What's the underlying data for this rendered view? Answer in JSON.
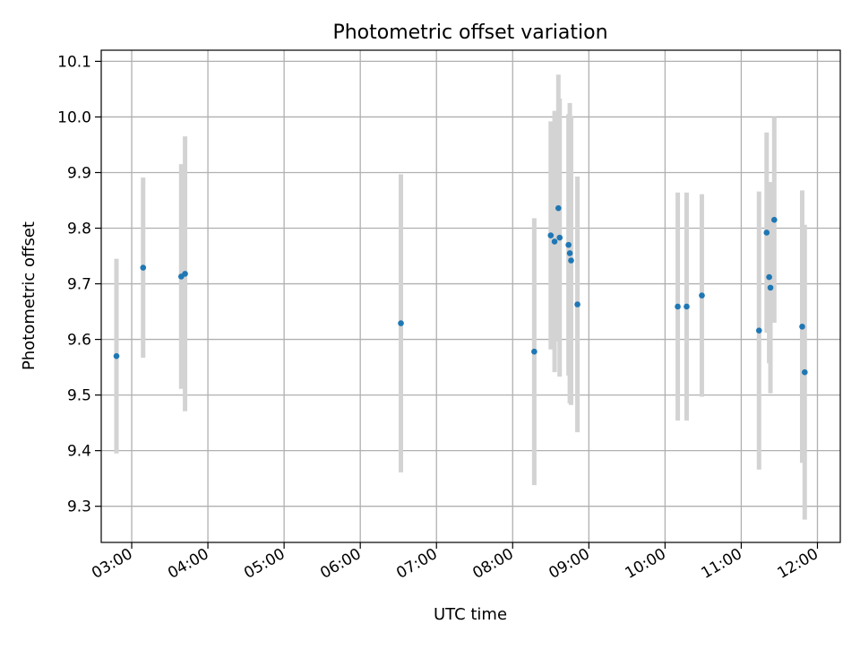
{
  "chart_data": {
    "type": "scatter",
    "title": "Photometric offset variation",
    "xlabel": "UTC time",
    "ylabel": "Photometric offset",
    "xlim": [
      "02:36",
      "12:18"
    ],
    "ylim": [
      9.235,
      10.12
    ],
    "x_ticks": [
      "03:00",
      "04:00",
      "05:00",
      "06:00",
      "07:00",
      "08:00",
      "09:00",
      "10:00",
      "11:00",
      "12:00"
    ],
    "y_ticks": [
      "9.3",
      "9.4",
      "9.5",
      "9.6",
      "9.7",
      "9.8",
      "9.9",
      "10.0",
      "10.1"
    ],
    "grid": true,
    "point_color": "#1f77b4",
    "errorbar_color": "#d3d3d3",
    "points": [
      {
        "x": "02:48",
        "y": 9.57,
        "err": 0.175
      },
      {
        "x": "03:09",
        "y": 9.729,
        "err": 0.162
      },
      {
        "x": "03:39",
        "y": 9.713,
        "err": 0.202
      },
      {
        "x": "03:42",
        "y": 9.718,
        "err": 0.247
      },
      {
        "x": "06:32",
        "y": 9.629,
        "err": 0.268
      },
      {
        "x": "08:17",
        "y": 9.578,
        "err": 0.24
      },
      {
        "x": "08:30",
        "y": 9.787,
        "err": 0.205
      },
      {
        "x": "08:33",
        "y": 9.776,
        "err": 0.235
      },
      {
        "x": "08:36",
        "y": 9.836,
        "err": 0.24
      },
      {
        "x": "08:37",
        "y": 9.783,
        "err": 0.25
      },
      {
        "x": "08:44",
        "y": 9.77,
        "err": 0.235
      },
      {
        "x": "08:45",
        "y": 9.755,
        "err": 0.27
      },
      {
        "x": "08:46",
        "y": 9.742,
        "err": 0.26
      },
      {
        "x": "08:51",
        "y": 9.663,
        "err": 0.23
      },
      {
        "x": "10:10",
        "y": 9.659,
        "err": 0.205
      },
      {
        "x": "10:17",
        "y": 9.659,
        "err": 0.205
      },
      {
        "x": "10:29",
        "y": 9.679,
        "err": 0.182
      },
      {
        "x": "11:14",
        "y": 9.616,
        "err": 0.25
      },
      {
        "x": "11:20",
        "y": 9.792,
        "err": 0.18
      },
      {
        "x": "11:22",
        "y": 9.712,
        "err": 0.155
      },
      {
        "x": "11:23",
        "y": 9.693,
        "err": 0.19
      },
      {
        "x": "11:26",
        "y": 9.815,
        "err": 0.185
      },
      {
        "x": "11:48",
        "y": 9.623,
        "err": 0.245
      },
      {
        "x": "11:50",
        "y": 9.541,
        "err": 0.265
      }
    ]
  }
}
